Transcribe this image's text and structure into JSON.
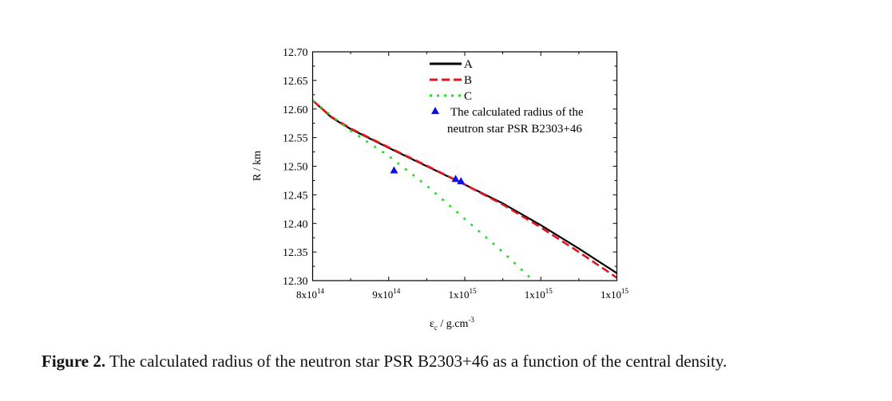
{
  "chart_data": {
    "type": "line",
    "title": "",
    "xlabel": "ε_c / g.cm^-3",
    "xlabel_main": "ε",
    "xlabel_sub": "c",
    "xlabel_rest": " / g.cm",
    "xlabel_sup": "-3",
    "ylabel": "R / km",
    "x_unit_note": "x values in units of 1e14 g/cm^3",
    "xlim": [
      8,
      12
    ],
    "ylim": [
      12.3,
      12.7
    ],
    "x_ticks": [
      {
        "value": 8,
        "base": "8x10",
        "exp": "14"
      },
      {
        "value": 9,
        "base": "9x10",
        "exp": "14"
      },
      {
        "value": 10,
        "base": "1x10",
        "exp": "15"
      },
      {
        "value": 11,
        "base": "1x10",
        "exp": "15"
      },
      {
        "value": 12,
        "base": "1x10",
        "exp": "15"
      }
    ],
    "y_ticks": [
      "12.30",
      "12.35",
      "12.40",
      "12.45",
      "12.50",
      "12.55",
      "12.60",
      "12.65",
      "12.70"
    ],
    "grid": false,
    "legend_position": "top-center",
    "series": [
      {
        "name": "A",
        "color": "#000000",
        "style": "solid",
        "x": [
          8.0,
          8.25,
          8.5,
          9.0,
          9.5,
          10.0,
          10.5,
          11.0,
          11.5,
          12.0
        ],
        "y": [
          12.615,
          12.585,
          12.565,
          12.532,
          12.5,
          12.468,
          12.435,
          12.397,
          12.356,
          12.313
        ]
      },
      {
        "name": "B",
        "color": "#e8141b",
        "style": "dashed",
        "x": [
          8.0,
          8.25,
          8.5,
          9.0,
          9.5,
          10.0,
          10.5,
          11.0,
          11.5,
          12.0
        ],
        "y": [
          12.615,
          12.586,
          12.566,
          12.533,
          12.501,
          12.468,
          12.433,
          12.393,
          12.35,
          12.305
        ]
      },
      {
        "name": "C",
        "color": "#22dd22",
        "style": "dotted",
        "x": [
          8.0,
          8.25,
          8.5,
          9.0,
          9.5,
          10.0,
          10.5,
          10.9
        ],
        "y": [
          12.615,
          12.588,
          12.562,
          12.518,
          12.466,
          12.408,
          12.35,
          12.3
        ]
      }
    ],
    "points": {
      "name": "The calculated radius of the neutron star PSR B2303+46",
      "legend_line1": "The calculated radius of the",
      "legend_line2": "neutron star PSR B2303+46",
      "color": "#1010e0",
      "x": [
        9.07,
        9.88,
        9.95
      ],
      "y": [
        12.493,
        12.478,
        12.474
      ]
    }
  },
  "caption": {
    "label": "Figure 2.",
    "text": " The calculated radius of the neutron star PSR B2303+46 as a function of the central density."
  }
}
